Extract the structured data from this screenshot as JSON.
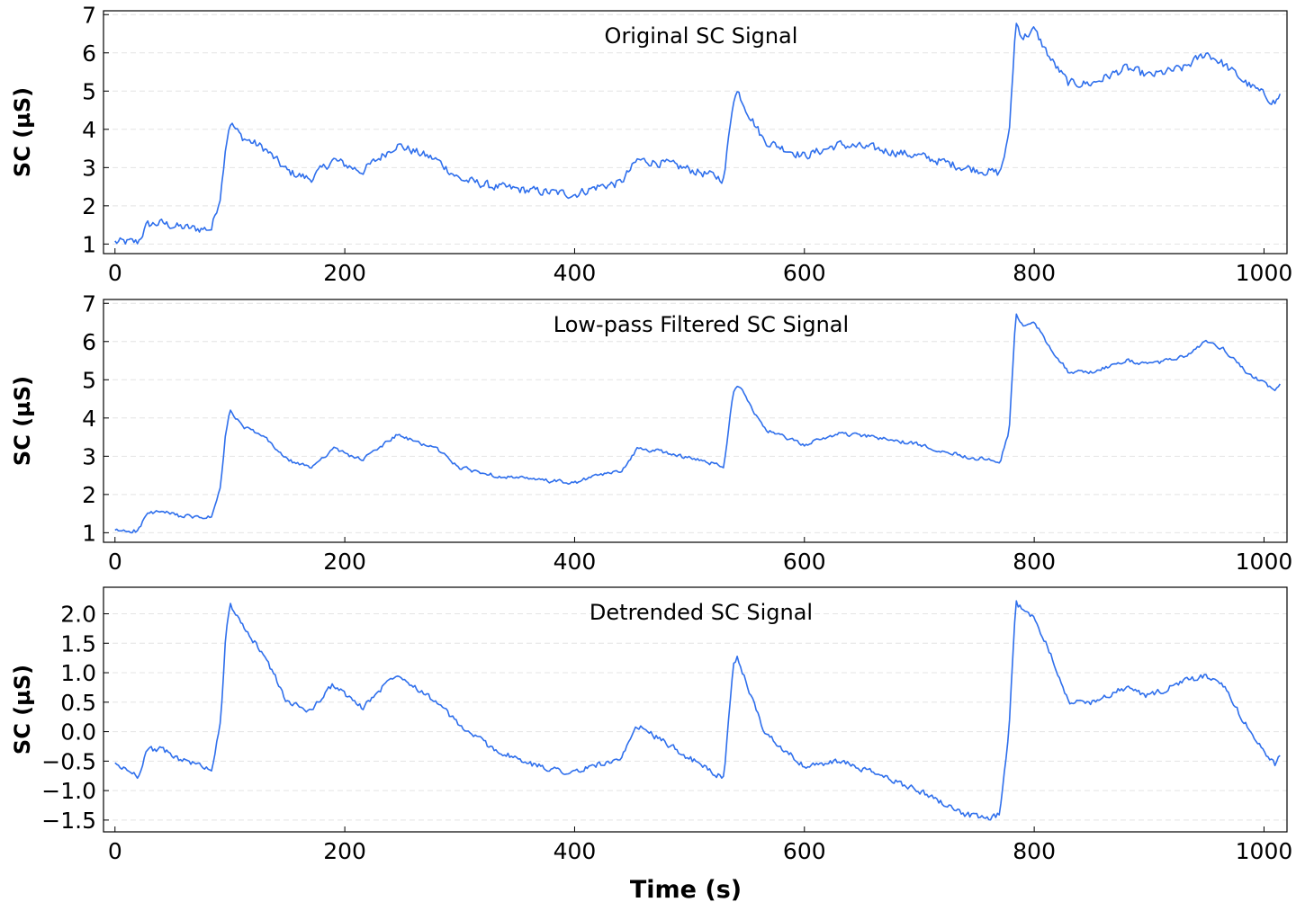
{
  "chart_data": [
    {
      "type": "line",
      "title": "Original SC Signal",
      "xlabel": "",
      "ylabel": "SC (µS)",
      "xlim": [
        -10,
        1020
      ],
      "ylim": [
        0.75,
        7.1
      ],
      "xticks": [
        "0",
        "200",
        "400",
        "600",
        "800",
        "1000"
      ],
      "yticks": [
        "1",
        "2",
        "3",
        "4",
        "5",
        "6",
        "7"
      ],
      "grid": "horizontal dashed",
      "series": [
        {
          "color": "#2f6fec",
          "noise": 0.16,
          "x": [
            0,
            20,
            28,
            40,
            55,
            70,
            84,
            92,
            96,
            100,
            110,
            130,
            150,
            170,
            190,
            215,
            245,
            280,
            300,
            330,
            360,
            400,
            420,
            440,
            455,
            480,
            500,
            530,
            538,
            542,
            550,
            565,
            600,
            630,
            660,
            700,
            740,
            770,
            778,
            784,
            790,
            800,
            815,
            830,
            850,
            880,
            900,
            930,
            950,
            965,
            985,
            1000,
            1010,
            1015
          ],
          "y": [
            1.05,
            1.05,
            1.5,
            1.55,
            1.45,
            1.4,
            1.4,
            2.3,
            3.5,
            4.2,
            3.8,
            3.5,
            2.9,
            2.7,
            3.2,
            2.9,
            3.6,
            3.2,
            2.7,
            2.5,
            2.4,
            2.3,
            2.5,
            2.6,
            3.2,
            3.1,
            2.95,
            2.7,
            4.8,
            5.0,
            4.5,
            3.7,
            3.3,
            3.6,
            3.5,
            3.3,
            3.0,
            2.85,
            3.8,
            6.8,
            6.4,
            6.6,
            5.8,
            5.2,
            5.2,
            5.6,
            5.4,
            5.6,
            6.0,
            5.7,
            5.2,
            4.9,
            4.7,
            4.95
          ]
        }
      ]
    },
    {
      "type": "line",
      "title": "Low-pass Filtered SC Signal",
      "xlabel": "",
      "ylabel": "SC (µS)",
      "xlim": [
        -10,
        1020
      ],
      "ylim": [
        0.75,
        7.1
      ],
      "xticks": [
        "0",
        "200",
        "400",
        "600",
        "800",
        "1000"
      ],
      "yticks": [
        "1",
        "2",
        "3",
        "4",
        "5",
        "6",
        "7"
      ],
      "grid": "horizontal dashed",
      "series": [
        {
          "color": "#2f6fec",
          "noise": 0.07,
          "x": [
            0,
            20,
            28,
            40,
            55,
            70,
            84,
            92,
            96,
            100,
            110,
            130,
            150,
            170,
            190,
            215,
            245,
            280,
            300,
            330,
            360,
            400,
            420,
            440,
            455,
            480,
            500,
            530,
            538,
            542,
            550,
            565,
            600,
            630,
            660,
            700,
            740,
            770,
            778,
            784,
            790,
            800,
            815,
            830,
            850,
            880,
            900,
            930,
            950,
            965,
            985,
            1000,
            1010,
            1015
          ],
          "y": [
            1.05,
            1.05,
            1.5,
            1.55,
            1.45,
            1.4,
            1.4,
            2.2,
            3.5,
            4.2,
            3.8,
            3.5,
            2.9,
            2.7,
            3.2,
            2.9,
            3.55,
            3.2,
            2.7,
            2.5,
            2.4,
            2.3,
            2.5,
            2.6,
            3.2,
            3.1,
            2.95,
            2.75,
            4.7,
            4.9,
            4.5,
            3.7,
            3.3,
            3.6,
            3.5,
            3.3,
            3.0,
            2.85,
            3.6,
            6.7,
            6.4,
            6.5,
            5.8,
            5.2,
            5.2,
            5.5,
            5.4,
            5.6,
            6.0,
            5.8,
            5.2,
            4.9,
            4.7,
            4.95
          ]
        }
      ]
    },
    {
      "type": "line",
      "title": "Detrended SC Signal",
      "xlabel": "Time (s)",
      "ylabel": "SC (µS)",
      "xlim": [
        -10,
        1020
      ],
      "ylim": [
        -1.7,
        2.45
      ],
      "xticks": [
        "0",
        "200",
        "400",
        "600",
        "800",
        "1000"
      ],
      "yticks": [
        "2.0",
        "1.5",
        "1.0",
        "0.5",
        "0.0",
        "−0.5",
        "−1.0",
        "−1.5"
      ],
      "grid": "horizontal dashed",
      "series": [
        {
          "color": "#2f6fec",
          "noise": 0.07,
          "x": [
            0,
            20,
            28,
            40,
            55,
            70,
            84,
            92,
            96,
            100,
            110,
            130,
            150,
            170,
            190,
            215,
            245,
            280,
            300,
            330,
            360,
            400,
            420,
            440,
            455,
            480,
            500,
            530,
            538,
            542,
            550,
            565,
            600,
            630,
            660,
            700,
            740,
            760,
            770,
            778,
            784,
            790,
            800,
            815,
            830,
            850,
            880,
            900,
            930,
            950,
            965,
            985,
            1000,
            1010,
            1015
          ],
          "y": [
            -0.55,
            -0.75,
            -0.3,
            -0.3,
            -0.45,
            -0.55,
            -0.65,
            0.2,
            1.5,
            2.2,
            1.8,
            1.3,
            0.5,
            0.35,
            0.8,
            0.4,
            1.0,
            0.5,
            0.1,
            -0.3,
            -0.55,
            -0.7,
            -0.55,
            -0.5,
            0.1,
            -0.2,
            -0.45,
            -0.8,
            1.1,
            1.25,
            0.8,
            0.0,
            -0.6,
            -0.5,
            -0.7,
            -1.0,
            -1.4,
            -1.5,
            -1.4,
            0.0,
            2.2,
            2.05,
            1.95,
            1.3,
            0.5,
            0.5,
            0.75,
            0.6,
            0.85,
            0.95,
            0.75,
            0.1,
            -0.35,
            -0.55,
            -0.4
          ]
        }
      ]
    }
  ]
}
